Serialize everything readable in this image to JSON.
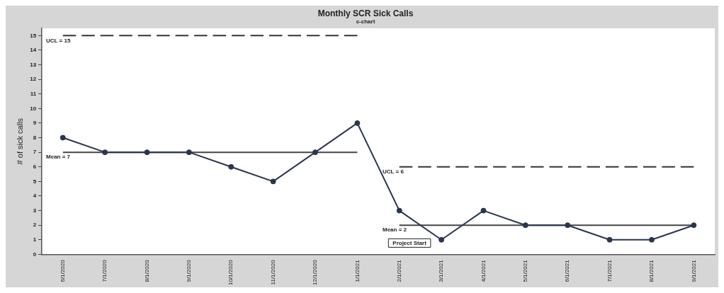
{
  "chart_data": {
    "type": "line",
    "title": "Monthly SCR Sick Calls",
    "subtitle": "c-chart",
    "ylabel": "# of sick calls",
    "categories": [
      "6/1/2020",
      "7/1/2020",
      "8/1/2020",
      "9/1/2020",
      "10/1/2020",
      "11/1/2020",
      "12/1/2020",
      "1/1/2021",
      "2/1/2021",
      "3/1/2021",
      "4/1/2021",
      "5/1/2021",
      "6/1/2021",
      "7/1/2021",
      "8/1/2021",
      "9/1/2021"
    ],
    "series": [
      {
        "color": "#2a3550",
        "values": [
          8,
          7,
          7,
          7,
          6,
          5,
          7,
          9,
          3,
          1,
          3,
          2,
          2,
          1,
          1,
          2
        ]
      },
      {
        "type": "line",
        "color": "#333333",
        "line_style": "dashed",
        "marker": "none",
        "values": [
          15,
          15,
          15,
          15,
          15,
          15,
          15,
          15,
          null,
          null,
          null,
          null,
          null,
          null,
          null,
          null
        ]
      },
      {
        "type": "line",
        "color": "#444444",
        "line_style": "solid",
        "marker": "none",
        "values": [
          7,
          7,
          7,
          7,
          7,
          7,
          7,
          7,
          null,
          null,
          null,
          null,
          null,
          null,
          null,
          null
        ]
      },
      {
        "type": "line",
        "color": "#333333",
        "line_style": "dashed",
        "marker": "none",
        "values": [
          null,
          null,
          null,
          null,
          null,
          null,
          null,
          null,
          6,
          6,
          6,
          6,
          6,
          6,
          6,
          6
        ]
      },
      {
        "type": "line",
        "color": "#444444",
        "line_style": "solid",
        "marker": "none",
        "values": [
          null,
          null,
          null,
          null,
          null,
          null,
          null,
          null,
          2,
          2,
          2,
          2,
          2,
          2,
          2,
          2
        ]
      }
    ],
    "marker": "circle",
    "ylim": [
      0,
      15.5
    ],
    "yticks": [
      0,
      1,
      2,
      3,
      4,
      5,
      6,
      7,
      8,
      9,
      10,
      11,
      12,
      13,
      14,
      15
    ],
    "grid": false,
    "legend": false,
    "annotations": [
      {
        "text": "UCL = 15",
        "x": "6/1/2020",
        "y": 15
      },
      {
        "text": "Mean = 7",
        "x": "6/1/2020",
        "y": 7
      },
      {
        "text": "UCL = 6",
        "x": "2/1/2021",
        "y": 6
      },
      {
        "text": "Mean = 2",
        "x": "2/1/2021",
        "y": 2
      },
      "Project Start"
    ]
  }
}
